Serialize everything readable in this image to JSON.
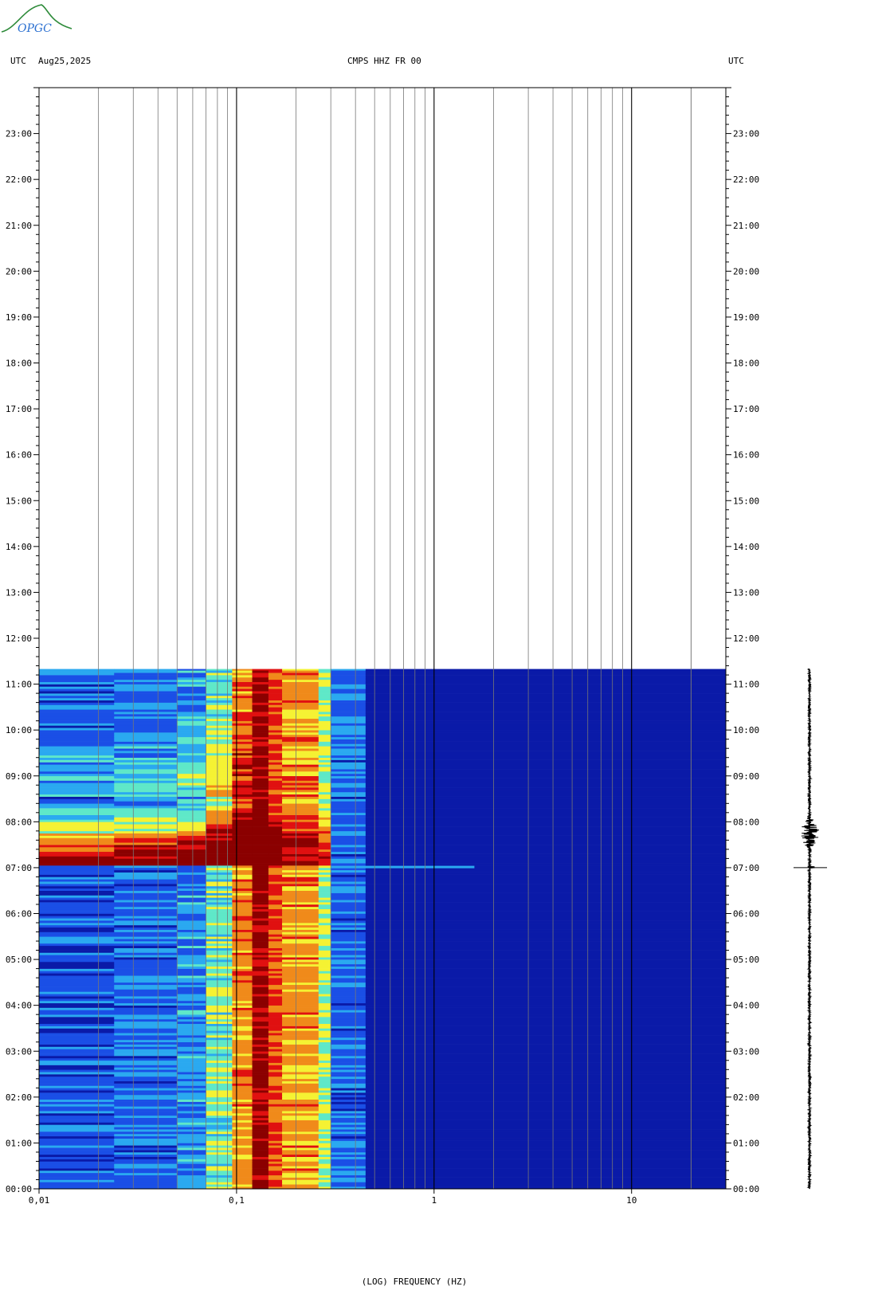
{
  "header": {
    "left_tz": "UTC",
    "date": "Aug25,2025",
    "station": "CMPS HHZ FR 00",
    "right_tz": "UTC",
    "logo_text": "OPGC"
  },
  "chart_data": {
    "type": "heatmap",
    "title": "CMPS HHZ FR 00",
    "xlabel": "(LOG) FREQUENCY (HZ)",
    "ylabel": "UTC",
    "x_scale": "log",
    "xlim": [
      0.01,
      30
    ],
    "x_ticks": [
      {
        "value": 0.01,
        "label": "0,01"
      },
      {
        "value": 0.1,
        "label": "0,1"
      },
      {
        "value": 1,
        "label": "1"
      },
      {
        "value": 10,
        "label": "10"
      }
    ],
    "y_range_hours": [
      0,
      24
    ],
    "y_ticks": [
      "00:00",
      "01:00",
      "02:00",
      "03:00",
      "04:00",
      "05:00",
      "06:00",
      "07:00",
      "08:00",
      "09:00",
      "10:00",
      "11:00",
      "12:00",
      "13:00",
      "14:00",
      "15:00",
      "16:00",
      "17:00",
      "18:00",
      "19:00",
      "20:00",
      "21:00",
      "22:00",
      "23:00"
    ],
    "data_end_hour": 11.33,
    "event_hour": 7.0,
    "colors": {
      "background_level": "#0a1aa8",
      "low": "#1a4fe6",
      "mid_low": "#2aa9f0",
      "mid": "#5fe8c8",
      "high": "#f5f233",
      "very_high": "#f08a1a",
      "peak": "#e01010",
      "saturated": "#8b0000"
    },
    "frequency_bands": [
      {
        "f0": 0.01,
        "f1": 0.024,
        "level": 0.18
      },
      {
        "f0": 0.024,
        "f1": 0.05,
        "level": 0.22
      },
      {
        "f0": 0.05,
        "f1": 0.07,
        "level": 0.28
      },
      {
        "f0": 0.07,
        "f1": 0.095,
        "level": 0.45
      },
      {
        "f0": 0.095,
        "f1": 0.12,
        "level": 0.68
      },
      {
        "f0": 0.12,
        "f1": 0.145,
        "level": 0.92
      },
      {
        "f0": 0.145,
        "f1": 0.17,
        "level": 0.74
      },
      {
        "f0": 0.17,
        "f1": 0.26,
        "level": 0.66
      },
      {
        "f0": 0.26,
        "f1": 0.3,
        "level": 0.5
      },
      {
        "f0": 0.3,
        "f1": 0.45,
        "level": 0.22
      },
      {
        "f0": 0.45,
        "f1": 30,
        "level": 0.03
      }
    ],
    "seismogram": {
      "event_hour": 7.0,
      "coda_peak_hour": 7.75
    }
  }
}
